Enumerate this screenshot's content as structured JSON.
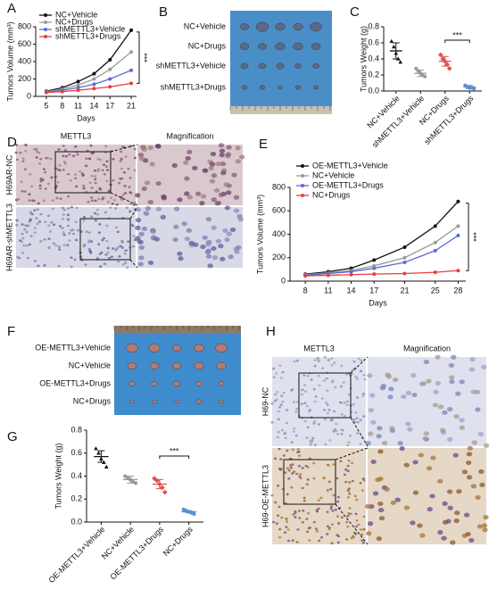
{
  "panel_labels": [
    "A",
    "B",
    "C",
    "D",
    "E",
    "F",
    "G",
    "H"
  ],
  "chart_data": [
    {
      "type": "line",
      "ylabel": "Tumors Volume (mm³)",
      "xlabel": "Days",
      "annotation": "***",
      "x": [
        5,
        8,
        11,
        14,
        17,
        21
      ],
      "xlim": [
        3,
        22
      ],
      "xticks": [
        5,
        8,
        11,
        14,
        17,
        21
      ],
      "ylim": [
        0,
        800
      ],
      "yticks": [
        0,
        200,
        400,
        600,
        800
      ],
      "legend": "upper left",
      "series": [
        {
          "name": "NC+Vehicle",
          "color": "#111111",
          "values": [
            60,
            100,
            170,
            260,
            420,
            760
          ]
        },
        {
          "name": "NC+Drugs",
          "color": "#9a9a9a",
          "values": [
            55,
            85,
            130,
            200,
            310,
            510
          ]
        },
        {
          "name": "shMETTL3+Vehicle",
          "color": "#5b6bd6",
          "values": [
            50,
            70,
            100,
            140,
            200,
            300
          ]
        },
        {
          "name": "shMETTL3+Drugs",
          "color": "#e8403a",
          "values": [
            45,
            55,
            70,
            90,
            110,
            150
          ]
        }
      ]
    },
    {
      "type": "dot",
      "ylabel": "Tumors Weight (g)",
      "annotation": "***",
      "categories": [
        "NC+Vehicle",
        "shMETTL3+Vehicle",
        "NC+Drugs",
        "shMETTL3+Drugs"
      ],
      "colors": [
        "#111111",
        "#9a9a9a",
        "#e05050",
        "#5b8fd6"
      ],
      "values": [
        0.5,
        0.22,
        0.37,
        0.05
      ],
      "errors": [
        0.1,
        0.04,
        0.06,
        0.02
      ],
      "points": [
        [
          0.62,
          0.55,
          0.47,
          0.4,
          0.36
        ],
        [
          0.28,
          0.25,
          0.22,
          0.2,
          0.18
        ],
        [
          0.45,
          0.4,
          0.37,
          0.33,
          0.28
        ],
        [
          0.07,
          0.05,
          0.04,
          0.04,
          0.03
        ]
      ],
      "ylim": [
        0,
        0.8
      ],
      "yticks": [
        {
          "value": 0,
          "label": "0.0"
        },
        0.2,
        0.4,
        0.6,
        0.8
      ]
    },
    {
      "type": "line",
      "ylabel": "Tumors Volume (mm³)",
      "xlabel": "Days",
      "annotation": "***",
      "x": [
        8,
        11,
        14,
        17,
        21,
        25,
        28
      ],
      "xlim": [
        6,
        29
      ],
      "xticks": [
        8,
        11,
        14,
        17,
        21,
        25,
        28
      ],
      "ylim": [
        0,
        800
      ],
      "yticks": [
        0,
        200,
        400,
        600,
        800
      ],
      "legend": "upper left",
      "series": [
        {
          "name": "OE-METTL3+Vehicle",
          "color": "#111111",
          "values": [
            60,
            80,
            110,
            180,
            290,
            470,
            680
          ]
        },
        {
          "name": "NC+Vehicle",
          "color": "#9a9a9a",
          "values": [
            55,
            70,
            90,
            130,
            200,
            330,
            470
          ]
        },
        {
          "name": "OE-METTL3+Drugs",
          "color": "#5b6bd6",
          "values": [
            50,
            65,
            80,
            110,
            160,
            260,
            390
          ]
        },
        {
          "name": "NC+Drugs",
          "color": "#e8403a",
          "values": [
            45,
            50,
            55,
            60,
            65,
            75,
            90
          ]
        }
      ]
    },
    {
      "type": "dot",
      "ylabel": "Tumors Weight (g)",
      "annotation": "***",
      "categories": [
        "OE-METTL3+Vehicle",
        "NC+Vehicle",
        "OE-METTL3+Drugs",
        "NC+Drugs"
      ],
      "colors": [
        "#111111",
        "#9a9a9a",
        "#e05050",
        "#5b8fd6"
      ],
      "values": [
        0.57,
        0.37,
        0.33,
        0.09
      ],
      "errors": [
        0.05,
        0.03,
        0.04,
        0.01
      ],
      "points": [
        [
          0.64,
          0.6,
          0.55,
          0.52,
          0.48
        ],
        [
          0.4,
          0.38,
          0.37,
          0.35,
          0.34
        ],
        [
          0.38,
          0.36,
          0.33,
          0.3,
          0.26
        ],
        [
          0.11,
          0.1,
          0.09,
          0.08,
          0.07
        ]
      ],
      "ylim": [
        0,
        0.8
      ],
      "yticks": [
        {
          "value": 0,
          "label": "0.0"
        },
        0.2,
        0.4,
        0.6,
        0.8
      ]
    }
  ],
  "photo_B": {
    "rows": [
      "NC+Vehicle",
      "NC+Drugs",
      "shMETTL3+Vehicle",
      "shMETTL3+Drugs"
    ]
  },
  "photo_F": {
    "rows": [
      "OE-METTL3+Vehicle",
      "NC+Vehicle",
      "OE-METTL3+Drugs",
      "NC+Drugs"
    ]
  },
  "ihc_D": {
    "columns": [
      "METTL3",
      "Magnification"
    ],
    "rows": [
      "H69AR-NC",
      "H69AR-shMETTL3"
    ]
  },
  "ihc_H": {
    "columns": [
      "METTL3",
      "Magnification"
    ],
    "rows": [
      "H69-NC",
      "H69-OE-METTL3"
    ]
  }
}
